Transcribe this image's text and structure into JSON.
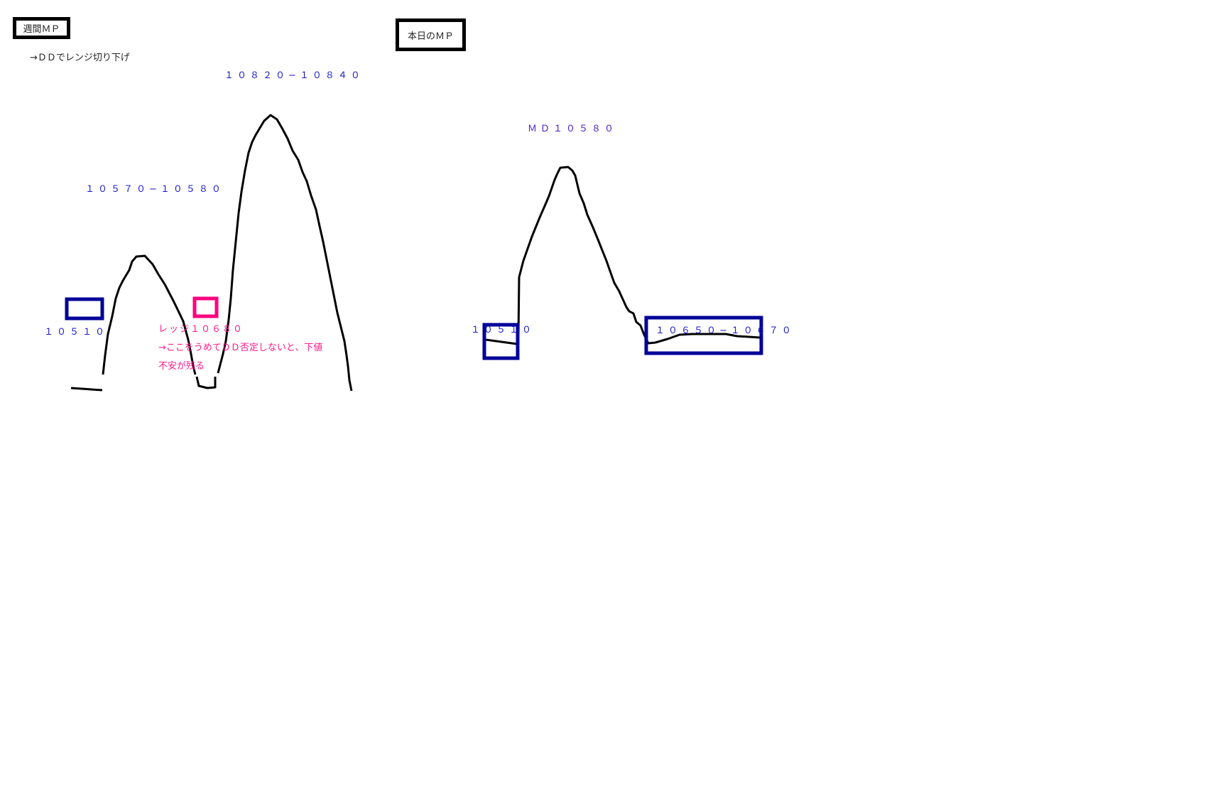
{
  "weekly": {
    "title": "週間ＭＰ",
    "note": "→ＤＤでレンジ切り下げ",
    "peak1_label": "１０５７０−１０５８０",
    "peak2_label": "１０８２０−１０８４０",
    "low_label": "１０５１０",
    "ledge_label": "レッジ１０６８０",
    "ledge_note_1": "→ここをうめてＤＤ否定しないと、下値",
    "ledge_note_2": "不安が残る"
  },
  "daily": {
    "title": "本日のＭＰ",
    "peak_label": "ＭＤ１０５８０",
    "low_label": "１０５１０",
    "range_label": "１０６５０−１０６７０"
  },
  "colors": {
    "box_blue": "#000099",
    "text_blue": "#1a1acc",
    "pink": "#ff0080",
    "curve": "#000000"
  }
}
